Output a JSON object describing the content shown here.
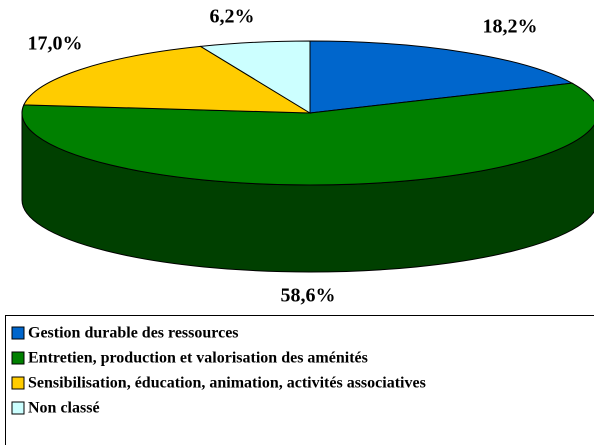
{
  "chart_data": {
    "type": "pie3d",
    "categories": [
      "Gestion durable des ressources",
      "Entretien, production et valorisation des aménités",
      "Sensibilisation, éducation, animation, activités associatives",
      "Non classé"
    ],
    "values": [
      18.2,
      58.6,
      17.0,
      6.2
    ],
    "value_labels": [
      "18,2%",
      "58,6%",
      "17,0%",
      "6,2%"
    ],
    "colors": [
      "#0066cc",
      "#008000",
      "#ffcc00",
      "#ccffff"
    ],
    "legend": "bottom"
  }
}
